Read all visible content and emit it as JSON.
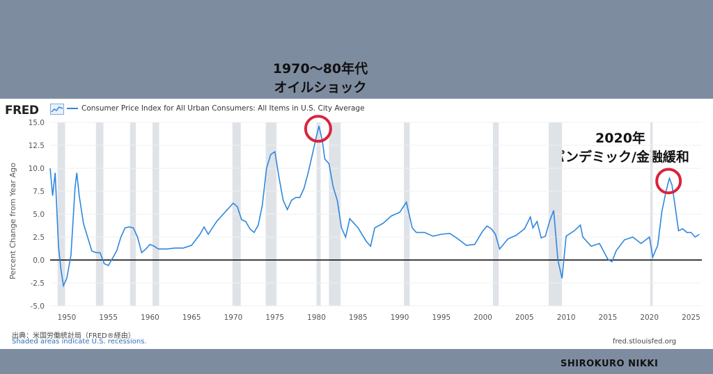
{
  "annotations": {
    "oil_shock": {
      "line1": "1970〜80年代",
      "line2": "オイルショック"
    },
    "pandemic": {
      "line1": "2020年",
      "line2": "パンデミック/金融緩和"
    }
  },
  "brand": "SHIROKURO NIKKI",
  "fred": {
    "logo": "FRED",
    "source": "出典：米国労働統計局（FRED®経由）",
    "recessions_note": "Shaded areas indicate U.S. recessions.",
    "url": "fred.stlouisfed.org"
  },
  "colors": {
    "line": "#2e86de",
    "recession": "#dfe3e8",
    "highlight": "#d9243a"
  },
  "chart_data": {
    "type": "line",
    "title": "",
    "series": [
      {
        "name": "Consumer Price Index for All Urban Consumers: All Items in U.S. City Average"
      }
    ],
    "ylabel": "Percent Change from Year Ago",
    "xlabel": "",
    "xlim": [
      1948,
      2026.3
    ],
    "ylim": [
      -5.0,
      15.0
    ],
    "yticks": [
      "15.0",
      "12.5",
      "10.0",
      "7.5",
      "5.0",
      "2.5",
      "0.0",
      "-2.5",
      "-5.0"
    ],
    "ytick_values": [
      15.0,
      12.5,
      10.0,
      7.5,
      5.0,
      2.5,
      0.0,
      -2.5,
      -5.0
    ],
    "xticks": [
      "1950",
      "1955",
      "1960",
      "1965",
      "1970",
      "1975",
      "1980",
      "1985",
      "1990",
      "1995",
      "2000",
      "2005",
      "2010",
      "2015",
      "2020",
      "2025"
    ],
    "xtick_values": [
      1950,
      1955,
      1960,
      1965,
      1970,
      1975,
      1980,
      1985,
      1990,
      1995,
      2000,
      2005,
      2010,
      2015,
      2020,
      2025
    ],
    "recessions": [
      [
        1948.9,
        1949.8
      ],
      [
        1953.5,
        1954.4
      ],
      [
        1957.6,
        1958.3
      ],
      [
        1960.3,
        1961.1
      ],
      [
        1969.9,
        1970.9
      ],
      [
        1973.9,
        1975.2
      ],
      [
        1980.0,
        1980.5
      ],
      [
        1981.5,
        1982.9
      ],
      [
        1990.5,
        1991.2
      ],
      [
        2001.2,
        2001.9
      ],
      [
        2007.9,
        2009.5
      ],
      [
        2020.1,
        2020.4
      ]
    ],
    "x": [
      1948.0,
      1948.3,
      1948.6,
      1949.0,
      1949.3,
      1949.6,
      1950.0,
      1950.5,
      1951.0,
      1951.2,
      1951.5,
      1952.0,
      1952.5,
      1953.0,
      1953.5,
      1954.0,
      1954.5,
      1955.0,
      1955.5,
      1956.0,
      1956.5,
      1957.0,
      1957.5,
      1958.0,
      1958.5,
      1959.0,
      1959.5,
      1960.0,
      1960.5,
      1961.0,
      1962.0,
      1963.0,
      1964.0,
      1965.0,
      1966.0,
      1966.5,
      1967.0,
      1968.0,
      1969.0,
      1970.0,
      1970.5,
      1971.0,
      1971.5,
      1972.0,
      1972.5,
      1973.0,
      1973.5,
      1974.0,
      1974.5,
      1975.0,
      1975.5,
      1976.0,
      1976.5,
      1977.0,
      1977.5,
      1978.0,
      1978.5,
      1979.0,
      1979.5,
      1980.0,
      1980.3,
      1980.7,
      1981.0,
      1981.5,
      1982.0,
      1982.5,
      1983.0,
      1983.5,
      1984.0,
      1985.0,
      1986.0,
      1986.5,
      1987.0,
      1988.0,
      1989.0,
      1990.0,
      1990.8,
      1991.5,
      1992.0,
      1993.0,
      1994.0,
      1995.0,
      1996.0,
      1997.0,
      1998.0,
      1999.0,
      2000.0,
      2000.5,
      2001.0,
      2001.5,
      2002.0,
      2003.0,
      2004.0,
      2005.0,
      2005.7,
      2006.0,
      2006.5,
      2007.0,
      2007.5,
      2008.0,
      2008.5,
      2009.0,
      2009.5,
      2010.0,
      2011.0,
      2011.7,
      2012.0,
      2013.0,
      2014.0,
      2015.0,
      2015.5,
      2016.0,
      2017.0,
      2018.0,
      2019.0,
      2020.0,
      2020.4,
      2020.8,
      2021.0,
      2021.5,
      2022.0,
      2022.4,
      2022.7,
      2023.0,
      2023.5,
      2024.0,
      2024.5,
      2025.0,
      2025.5,
      2026.0
    ],
    "y": [
      10.0,
      7.0,
      9.5,
      1.5,
      -1.0,
      -2.8,
      -2.0,
      0.5,
      8.0,
      9.5,
      7.0,
      4.0,
      2.5,
      1.0,
      0.8,
      0.8,
      -0.4,
      -0.6,
      0.2,
      1.0,
      2.5,
      3.5,
      3.6,
      3.5,
      2.5,
      0.8,
      1.2,
      1.7,
      1.5,
      1.2,
      1.2,
      1.3,
      1.3,
      1.6,
      2.8,
      3.6,
      2.8,
      4.2,
      5.2,
      6.2,
      5.8,
      4.4,
      4.2,
      3.4,
      3.0,
      3.8,
      6.0,
      10.0,
      11.5,
      11.8,
      9.0,
      6.5,
      5.5,
      6.5,
      6.8,
      6.8,
      7.8,
      9.5,
      11.5,
      13.5,
      14.6,
      13.0,
      11.0,
      10.5,
      8.0,
      6.5,
      3.5,
      2.5,
      4.5,
      3.5,
      2.0,
      1.5,
      3.5,
      4.0,
      4.8,
      5.2,
      6.3,
      3.5,
      3.0,
      3.0,
      2.6,
      2.8,
      2.9,
      2.3,
      1.6,
      1.7,
      3.2,
      3.7,
      3.4,
      2.8,
      1.2,
      2.3,
      2.7,
      3.4,
      4.7,
      3.5,
      4.2,
      2.4,
      2.6,
      4.2,
      5.4,
      0.0,
      -2.0,
      2.6,
      3.2,
      3.8,
      2.5,
      1.5,
      1.8,
      0.1,
      -0.2,
      1.0,
      2.2,
      2.5,
      1.8,
      2.5,
      0.3,
      1.2,
      1.6,
      5.3,
      7.5,
      8.9,
      8.2,
      6.4,
      3.2,
      3.4,
      3.0,
      3.0,
      2.5,
      2.8
    ]
  }
}
